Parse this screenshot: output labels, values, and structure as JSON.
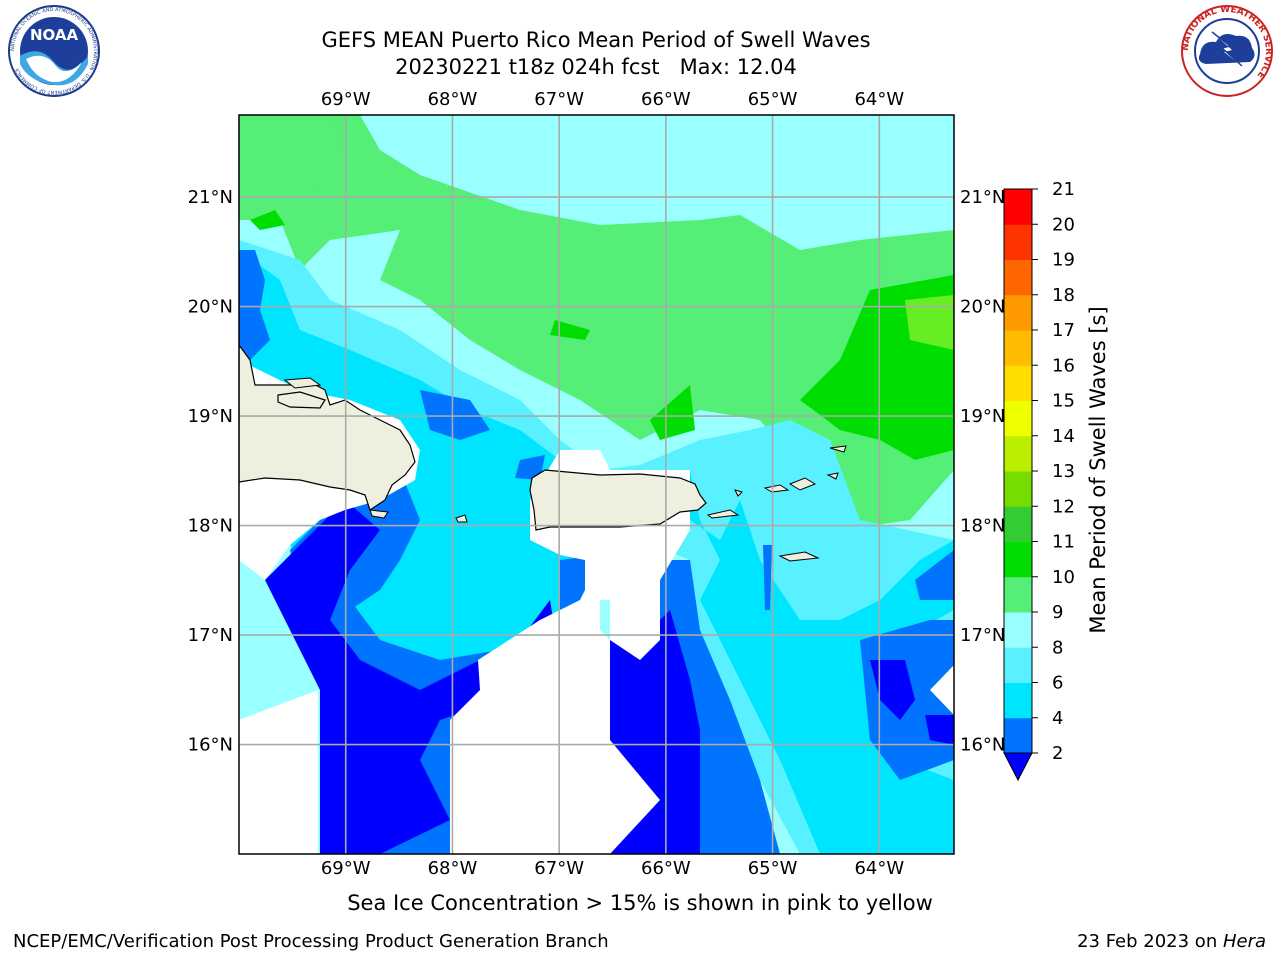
{
  "header": {
    "title_line1": "GEFS MEAN Puerto Rico Mean Period of Swell Waves",
    "title_line2": "20230221 t18z 024h fcst   Max: 12.04"
  },
  "logos": {
    "left": {
      "name": "NOAA",
      "text": "NOAA",
      "ring_text": "NATIONAL OCEANIC AND ATMOSPHERIC ADMINISTRATION · U.S. DEPARTMENT OF COMMERCE"
    },
    "right": {
      "name": "National Weather Service",
      "ring_text": "NATIONAL WEATHER SERVICE"
    }
  },
  "map": {
    "lon_labels": [
      "69°W",
      "68°W",
      "67°W",
      "66°W",
      "65°W",
      "64°W"
    ],
    "lat_labels": [
      "21°N",
      "20°N",
      "19°N",
      "18°N",
      "17°N",
      "16°N"
    ],
    "lon_extent": [
      -70.0,
      -63.3
    ],
    "lat_extent": [
      15.0,
      21.75
    ],
    "gridlines": true
  },
  "colorbar": {
    "label": "Mean Period of Swell Waves [s]",
    "ticks": [
      "2",
      "4",
      "6",
      "8",
      "9",
      "10",
      "11",
      "12",
      "13",
      "14",
      "15",
      "16",
      "17",
      "18",
      "19",
      "20",
      "21"
    ],
    "colors": [
      "#0000ff",
      "#0073ff",
      "#00e5ff",
      "#59f0ff",
      "#99ffff",
      "#55ee77",
      "#00dd00",
      "#33cc33",
      "#77dd00",
      "#bbee00",
      "#eeff00",
      "#ffdd00",
      "#ffbb00",
      "#ff9900",
      "#ff6600",
      "#ff3300",
      "#ff0000"
    ],
    "extend": "min"
  },
  "note": "Sea Ice Concentration > 15% is shown in pink to yellow",
  "footer": {
    "left": "NCEP/EMC/Verification Post Processing Product Generation Branch",
    "right_prefix": "23 Feb 2023 on ",
    "right_host": "Hera"
  },
  "chart_data": {
    "type": "heatmap",
    "title": "GEFS MEAN Puerto Rico Mean Period of Swell Waves",
    "subtitle": "20230221 t18z 024h fcst   Max: 12.04",
    "xlabel": "",
    "ylabel": "",
    "x_ticks": [
      "69°W",
      "68°W",
      "67°W",
      "66°W",
      "65°W",
      "64°W"
    ],
    "y_ticks": [
      "21°N",
      "20°N",
      "19°N",
      "18°N",
      "17°N",
      "16°N"
    ],
    "max_value": 12.04,
    "colorbar_label": "Mean Period of Swell Waves [s]",
    "levels": [
      2,
      4,
      6,
      8,
      9,
      10,
      11,
      12,
      13,
      14,
      15,
      16,
      17,
      18,
      19,
      20,
      21
    ],
    "regions_approx": [
      {
        "area": "north of Puerto Rico and Hispaniola",
        "range_s": "9-11"
      },
      {
        "area": "east near 64°W 19.5-20°N",
        "range_s": "10-12"
      },
      {
        "area": "Mona Passage / south of islands",
        "range_s": "4-9"
      },
      {
        "area": "southwest and southeast Caribbean",
        "range_s": "2-6"
      },
      {
        "area": "southeast corner",
        "range_s": "4-8"
      }
    ],
    "grid": true,
    "colorbar_position": "right"
  }
}
